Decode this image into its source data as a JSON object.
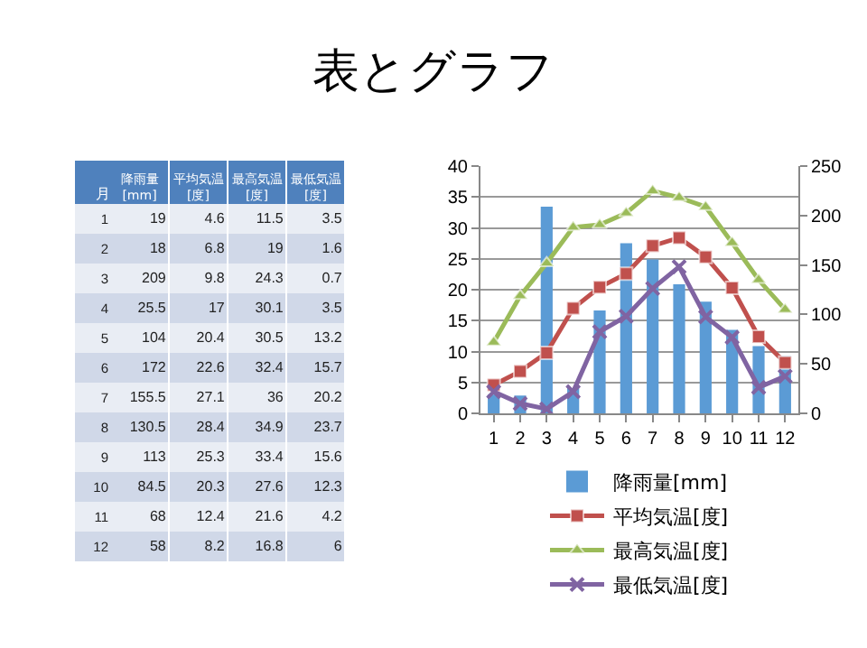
{
  "chart_data": [
    {
      "type": "heatmap",
      "title": "表とグラフ",
      "annotations": [
        "月"
      ],
      "data_labels": true,
      "grid": "x",
      "categories": [
        "降雨量[mm]",
        "平均気温[度]",
        "最高気温[度]",
        "最低気温[度]"
      ],
      "y_categories": [
        "1",
        "2",
        "3",
        "4",
        "5",
        "6",
        "7",
        "8",
        "9",
        "10",
        "11",
        "12"
      ],
      "cells": [
        [
          19,
          4.6,
          11.5,
          3.5
        ],
        [
          18,
          6.8,
          19,
          1.6
        ],
        [
          209,
          9.8,
          24.3,
          0.7
        ],
        [
          25.5,
          17,
          30.1,
          3.5
        ],
        [
          104,
          20.4,
          30.5,
          13.2
        ],
        [
          172,
          22.6,
          32.4,
          15.7
        ],
        [
          155.5,
          27.1,
          36,
          20.2
        ],
        [
          130.5,
          28.4,
          34.9,
          23.7
        ],
        [
          113,
          25.3,
          33.4,
          15.6
        ],
        [
          84.5,
          20.3,
          27.6,
          12.3
        ],
        [
          68,
          12.4,
          21.6,
          4.2
        ],
        [
          58,
          8.2,
          16.8,
          6
        ]
      ]
    },
    {
      "type": "line",
      "categories": [
        "1",
        "2",
        "3",
        "4",
        "5",
        "6",
        "7",
        "8",
        "9",
        "10",
        "11",
        "12"
      ],
      "series": [
        {
          "name": "降雨量[mm]",
          "type": "bar",
          "axis": "y2",
          "color": "#5b9bd5",
          "values": [
            19,
            18,
            209,
            25.5,
            104,
            172,
            155.5,
            130.5,
            113,
            84.5,
            68,
            58
          ]
        },
        {
          "name": "平均気温[度]",
          "color": "#c0504d",
          "marker": "square",
          "values": [
            4.6,
            6.8,
            9.8,
            17,
            20.4,
            22.6,
            27.1,
            28.4,
            25.3,
            20.3,
            12.4,
            8.2
          ]
        },
        {
          "name": "最高気温[度]",
          "color": "#9bbb59",
          "marker": "triangle",
          "values": [
            11.5,
            19,
            24.3,
            30.1,
            30.5,
            32.4,
            36,
            34.9,
            33.4,
            27.6,
            21.6,
            16.8
          ]
        },
        {
          "name": "最低気温[度]",
          "color": "#8064a2",
          "marker": "cross",
          "values": [
            3.5,
            1.6,
            0.7,
            3.5,
            13.2,
            15.7,
            20.2,
            23.7,
            15.6,
            12.3,
            4.2,
            6
          ]
        }
      ],
      "ylim": [
        0,
        40
      ],
      "yticks": [
        0,
        5,
        10,
        15,
        20,
        25,
        30,
        35,
        40
      ],
      "y2lim": [
        0,
        250
      ],
      "y2ticks": [
        0,
        50,
        100,
        150,
        200,
        250
      ],
      "grid": "y",
      "legend": "bottom"
    }
  ]
}
